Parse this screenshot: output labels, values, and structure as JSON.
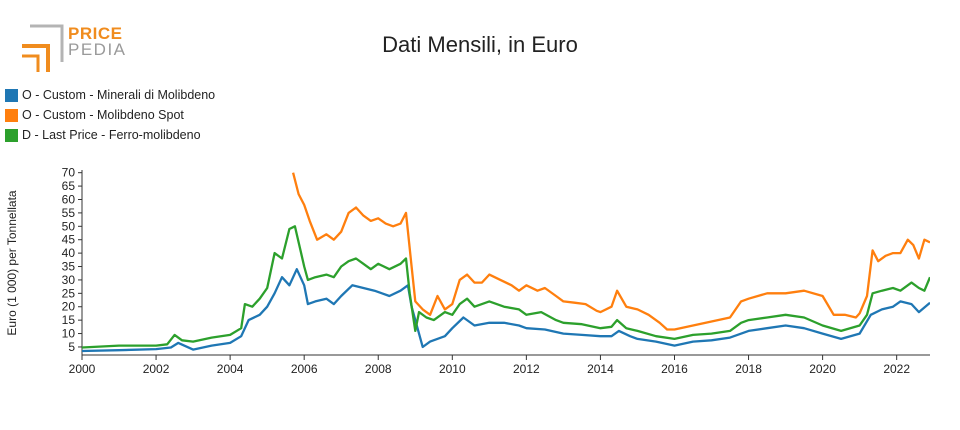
{
  "logo": {
    "word1": "PRICE",
    "word2": "PEDIA"
  },
  "colors": {
    "blue": "#1f77b4",
    "orange": "#ff7f0e",
    "green": "#2ca02c",
    "logo_orange": "#f08c1e",
    "logo_gray": "#9a9a9a"
  },
  "chart_data": {
    "type": "line",
    "title": "Dati Mensili, in Euro",
    "ylabel": "Euro (1 000) per Tonnellata",
    "xlabel": "",
    "xlim": [
      2000,
      2022.9
    ],
    "ylim": [
      2,
      71
    ],
    "x_ticks": [
      "2000",
      "2002",
      "2004",
      "2006",
      "2008",
      "2010",
      "2012",
      "2014",
      "2016",
      "2018",
      "2020",
      "2022"
    ],
    "y_ticks": [
      "5",
      "10",
      "15",
      "20",
      "25",
      "30",
      "35",
      "40",
      "45",
      "50",
      "55",
      "60",
      "65",
      "70"
    ],
    "grid": false,
    "legend_position": "top-left",
    "series": [
      {
        "name": "O - Custom - Minerali di Molibdeno",
        "color": "#1f77b4",
        "points": [
          [
            2000.0,
            3.5
          ],
          [
            2001.0,
            3.8
          ],
          [
            2002.0,
            4.2
          ],
          [
            2002.4,
            4.8
          ],
          [
            2002.6,
            6.5
          ],
          [
            2003.0,
            4.0
          ],
          [
            2003.5,
            5.5
          ],
          [
            2004.0,
            6.5
          ],
          [
            2004.3,
            9
          ],
          [
            2004.5,
            15
          ],
          [
            2004.8,
            17
          ],
          [
            2005.0,
            20
          ],
          [
            2005.2,
            25
          ],
          [
            2005.4,
            31
          ],
          [
            2005.6,
            28
          ],
          [
            2005.8,
            34
          ],
          [
            2006.0,
            28
          ],
          [
            2006.1,
            21
          ],
          [
            2006.3,
            22
          ],
          [
            2006.6,
            23
          ],
          [
            2006.8,
            21
          ],
          [
            2007.0,
            24
          ],
          [
            2007.3,
            28
          ],
          [
            2007.6,
            27
          ],
          [
            2007.9,
            26
          ],
          [
            2008.1,
            25
          ],
          [
            2008.3,
            24
          ],
          [
            2008.6,
            26
          ],
          [
            2008.8,
            28
          ],
          [
            2008.9,
            20
          ],
          [
            2009.0,
            15
          ],
          [
            2009.2,
            5
          ],
          [
            2009.4,
            7
          ],
          [
            2009.8,
            9
          ],
          [
            2010.0,
            12
          ],
          [
            2010.3,
            16
          ],
          [
            2010.6,
            13
          ],
          [
            2011.0,
            14
          ],
          [
            2011.4,
            14
          ],
          [
            2011.8,
            13
          ],
          [
            2012.0,
            12
          ],
          [
            2012.5,
            11.5
          ],
          [
            2013.0,
            10
          ],
          [
            2013.5,
            9.5
          ],
          [
            2014.0,
            9
          ],
          [
            2014.3,
            9
          ],
          [
            2014.5,
            11
          ],
          [
            2014.8,
            9
          ],
          [
            2015.0,
            8
          ],
          [
            2015.5,
            7
          ],
          [
            2016.0,
            5.5
          ],
          [
            2016.5,
            7
          ],
          [
            2017.0,
            7.5
          ],
          [
            2017.5,
            8.5
          ],
          [
            2018.0,
            11
          ],
          [
            2018.5,
            12
          ],
          [
            2019.0,
            13
          ],
          [
            2019.5,
            12
          ],
          [
            2020.0,
            10
          ],
          [
            2020.5,
            8
          ],
          [
            2021.0,
            10
          ],
          [
            2021.3,
            17
          ],
          [
            2021.6,
            19
          ],
          [
            2021.9,
            20
          ],
          [
            2022.1,
            22
          ],
          [
            2022.4,
            21
          ],
          [
            2022.6,
            18
          ],
          [
            2022.9,
            21.5
          ]
        ]
      },
      {
        "name": "O - Custom - Molibdeno Spot",
        "color": "#ff7f0e",
        "points": [
          [
            2005.7,
            70
          ],
          [
            2005.85,
            62
          ],
          [
            2006.0,
            58
          ],
          [
            2006.15,
            52
          ],
          [
            2006.35,
            45
          ],
          [
            2006.6,
            47
          ],
          [
            2006.8,
            45
          ],
          [
            2007.0,
            48
          ],
          [
            2007.2,
            55
          ],
          [
            2007.4,
            57
          ],
          [
            2007.6,
            54
          ],
          [
            2007.8,
            52
          ],
          [
            2008.0,
            53
          ],
          [
            2008.2,
            51
          ],
          [
            2008.4,
            50
          ],
          [
            2008.6,
            51
          ],
          [
            2008.75,
            55
          ],
          [
            2008.9,
            35
          ],
          [
            2009.0,
            22
          ],
          [
            2009.2,
            19
          ],
          [
            2009.4,
            17
          ],
          [
            2009.6,
            24
          ],
          [
            2009.8,
            19
          ],
          [
            2010.0,
            21
          ],
          [
            2010.2,
            30
          ],
          [
            2010.4,
            32
          ],
          [
            2010.6,
            29
          ],
          [
            2010.8,
            29
          ],
          [
            2011.0,
            32
          ],
          [
            2011.3,
            30
          ],
          [
            2011.6,
            28
          ],
          [
            2011.8,
            26
          ],
          [
            2012.0,
            28
          ],
          [
            2012.3,
            26
          ],
          [
            2012.5,
            27
          ],
          [
            2012.8,
            24
          ],
          [
            2013.0,
            22
          ],
          [
            2013.3,
            21.5
          ],
          [
            2013.6,
            21
          ],
          [
            2013.9,
            18.5
          ],
          [
            2014.0,
            18
          ],
          [
            2014.3,
            20
          ],
          [
            2014.45,
            26
          ],
          [
            2014.7,
            20
          ],
          [
            2015.0,
            19
          ],
          [
            2015.3,
            17
          ],
          [
            2015.6,
            14
          ],
          [
            2015.8,
            11.5
          ],
          [
            2016.0,
            11.5
          ],
          [
            2016.5,
            13
          ],
          [
            2017.0,
            14.5
          ],
          [
            2017.5,
            16
          ],
          [
            2017.8,
            22
          ],
          [
            2018.0,
            23
          ],
          [
            2018.5,
            25
          ],
          [
            2019.0,
            25
          ],
          [
            2019.5,
            26
          ],
          [
            2020.0,
            24
          ],
          [
            2020.3,
            17
          ],
          [
            2020.6,
            17
          ],
          [
            2020.9,
            16
          ],
          [
            2021.0,
            17.5
          ],
          [
            2021.2,
            24
          ],
          [
            2021.35,
            41
          ],
          [
            2021.5,
            37
          ],
          [
            2021.7,
            39
          ],
          [
            2021.9,
            40
          ],
          [
            2022.1,
            40
          ],
          [
            2022.3,
            45
          ],
          [
            2022.45,
            43
          ],
          [
            2022.6,
            38
          ],
          [
            2022.75,
            45
          ],
          [
            2022.9,
            44
          ]
        ]
      },
      {
        "name": "D - Last Price - Ferro-molibdeno",
        "color": "#2ca02c",
        "points": [
          [
            2000.0,
            4.8
          ],
          [
            2001.0,
            5.5
          ],
          [
            2002.0,
            5.5
          ],
          [
            2002.3,
            6.0
          ],
          [
            2002.5,
            9.5
          ],
          [
            2002.7,
            7.5
          ],
          [
            2003.0,
            7.0
          ],
          [
            2003.5,
            8.5
          ],
          [
            2004.0,
            9.5
          ],
          [
            2004.3,
            12
          ],
          [
            2004.4,
            21
          ],
          [
            2004.6,
            20
          ],
          [
            2004.8,
            23
          ],
          [
            2005.0,
            27
          ],
          [
            2005.2,
            40
          ],
          [
            2005.4,
            38
          ],
          [
            2005.6,
            49
          ],
          [
            2005.75,
            50
          ],
          [
            2005.9,
            41
          ],
          [
            2006.0,
            35
          ],
          [
            2006.1,
            30
          ],
          [
            2006.3,
            31
          ],
          [
            2006.6,
            32
          ],
          [
            2006.8,
            31
          ],
          [
            2007.0,
            35
          ],
          [
            2007.2,
            37
          ],
          [
            2007.4,
            38
          ],
          [
            2007.6,
            36
          ],
          [
            2007.8,
            34
          ],
          [
            2008.0,
            36
          ],
          [
            2008.3,
            34
          ],
          [
            2008.6,
            36
          ],
          [
            2008.75,
            38
          ],
          [
            2008.85,
            25
          ],
          [
            2009.0,
            11
          ],
          [
            2009.1,
            18
          ],
          [
            2009.3,
            16
          ],
          [
            2009.5,
            15
          ],
          [
            2009.8,
            18
          ],
          [
            2010.0,
            17
          ],
          [
            2010.2,
            21
          ],
          [
            2010.4,
            23
          ],
          [
            2010.6,
            20
          ],
          [
            2011.0,
            22
          ],
          [
            2011.4,
            20
          ],
          [
            2011.8,
            19
          ],
          [
            2012.0,
            17
          ],
          [
            2012.4,
            18
          ],
          [
            2012.8,
            15
          ],
          [
            2013.0,
            14
          ],
          [
            2013.5,
            13.5
          ],
          [
            2014.0,
            12
          ],
          [
            2014.3,
            12.5
          ],
          [
            2014.45,
            15
          ],
          [
            2014.7,
            12
          ],
          [
            2015.0,
            11
          ],
          [
            2015.5,
            9
          ],
          [
            2016.0,
            8
          ],
          [
            2016.5,
            9.5
          ],
          [
            2017.0,
            10
          ],
          [
            2017.5,
            11
          ],
          [
            2017.8,
            14
          ],
          [
            2018.0,
            15
          ],
          [
            2018.5,
            16
          ],
          [
            2019.0,
            17
          ],
          [
            2019.5,
            16
          ],
          [
            2020.0,
            13
          ],
          [
            2020.5,
            11
          ],
          [
            2021.0,
            13
          ],
          [
            2021.2,
            17
          ],
          [
            2021.35,
            25
          ],
          [
            2021.6,
            26
          ],
          [
            2021.9,
            27
          ],
          [
            2022.1,
            26
          ],
          [
            2022.4,
            29
          ],
          [
            2022.6,
            27
          ],
          [
            2022.75,
            26
          ],
          [
            2022.9,
            31
          ]
        ]
      }
    ]
  }
}
